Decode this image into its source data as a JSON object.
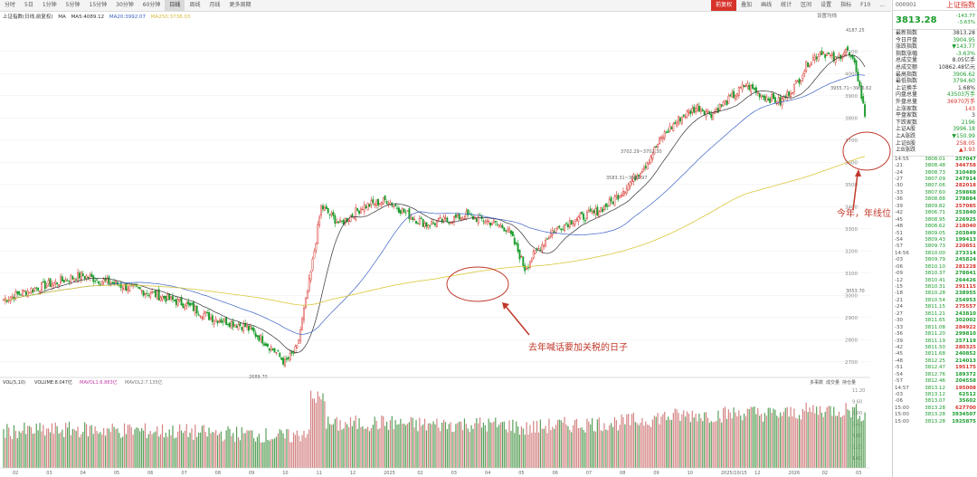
{
  "toolbar": {
    "periods": [
      "分时",
      "5日",
      "1分钟",
      "5分钟",
      "15分钟",
      "30分钟",
      "60分钟",
      "日线",
      "周线",
      "月线",
      "更多周期"
    ],
    "active_period": "日线",
    "right_buttons": [
      "前复权",
      "叠加",
      "画线",
      "统计",
      "区间",
      "设置",
      "指标",
      "F10",
      "..."
    ],
    "right_active": "前复权"
  },
  "chart_header": {
    "name": "上证指数(日线,前复权)",
    "ma_label": "MA",
    "ma5": "MA5:4089.12",
    "ma20": "MA20:3992.07",
    "ma250": "MA250:3738.03",
    "settings": "设置均线"
  },
  "right_panel": {
    "code": "000001",
    "name": "上证指数",
    "price": "3813.28",
    "change": "-143.77",
    "change_pct": "-3.63%",
    "stats": [
      {
        "label": "最新指数",
        "value": "3813.28",
        "color": "#333"
      },
      {
        "label": "今日开盘",
        "value": "3904.95",
        "color": "#1a9c2b"
      },
      {
        "label": "涨跌指数",
        "value": "▼143.77",
        "color": "#1a9c2b"
      },
      {
        "label": "指数涨幅",
        "value": "-3.63%",
        "color": "#1a9c2b"
      },
      {
        "label": "总成交量",
        "value": "8.05亿手",
        "color": "#333"
      },
      {
        "label": "总成交额",
        "value": "10862.48亿元",
        "color": "#333"
      },
      {
        "label": "最高指数",
        "value": "3906.62",
        "color": "#1a9c2b"
      },
      {
        "label": "最低指数",
        "value": "3794.60",
        "color": "#1a9c2b"
      },
      {
        "label": "上证换手",
        "value": "1.68%",
        "color": "#333"
      },
      {
        "label": "内盘总量",
        "value": "43503万手",
        "color": "#1a9c2b"
      },
      {
        "label": "外盘总量",
        "value": "36970万手",
        "color": "#d6332b"
      },
      {
        "label": "上涨家数",
        "value": "143",
        "color": "#d6332b"
      },
      {
        "label": "平盘家数",
        "value": "3",
        "color": "#333"
      },
      {
        "label": "下跌家数",
        "value": "2196",
        "color": "#1a9c2b"
      },
      {
        "label": "上证A股",
        "value": "3996.18",
        "color": "#1a9c2b"
      },
      {
        "label": "上A涨跌",
        "value": "▼150.99",
        "color": "#1a9c2b"
      },
      {
        "label": "上证B股",
        "value": "258.05",
        "color": "#d6332b"
      },
      {
        "label": "上B涨跌",
        "value": "▲3.93",
        "color": "#d6332b"
      }
    ],
    "ticks": [
      [
        "14:55",
        "3808.01",
        "257047"
      ],
      [
        "-21",
        "3808.48",
        "344758"
      ],
      [
        "-24",
        "3808.73",
        "310489"
      ],
      [
        "-27",
        "3807.09",
        "247914"
      ],
      [
        "-30",
        "3807.06",
        "282018"
      ],
      [
        "-33",
        "3807.60",
        "259868"
      ],
      [
        "-36",
        "3808.88",
        "278884"
      ],
      [
        "-39",
        "3809.82",
        "257085"
      ],
      [
        "-42",
        "3806.71",
        "253840"
      ],
      [
        "-45",
        "3808.95",
        "226925"
      ],
      [
        "-48",
        "3808.62",
        "218040"
      ],
      [
        "-51",
        "3809.05",
        "203849"
      ],
      [
        "-54",
        "3809.43",
        "199413"
      ],
      [
        "-57",
        "3809.73",
        "220851"
      ],
      [
        "14:56",
        "3810.00",
        "273314"
      ],
      [
        "-03",
        "3809.79",
        "245824"
      ],
      [
        "-06",
        "3810.10",
        "281228"
      ],
      [
        "-09",
        "3810.37",
        "278841"
      ],
      [
        "-12",
        "3810.41",
        "264426"
      ],
      [
        "-15",
        "3810.31",
        "291115"
      ],
      [
        "-18",
        "3810.28",
        "238955"
      ],
      [
        "-21",
        "3810.54",
        "254953"
      ],
      [
        "-24",
        "3811.15",
        "275557"
      ],
      [
        "-27",
        "3811.21",
        "243810"
      ],
      [
        "-30",
        "3811.65",
        "302002"
      ],
      [
        "-33",
        "3811.08",
        "284922"
      ],
      [
        "-36",
        "3811.20",
        "299810"
      ],
      [
        "-39",
        "3811.19",
        "257119"
      ],
      [
        "-42",
        "3811.50",
        "280325"
      ],
      [
        "-45",
        "3811.68",
        "240852"
      ],
      [
        "-48",
        "3812.25",
        "214013"
      ],
      [
        "-51",
        "3812.47",
        "195175"
      ],
      [
        "-54",
        "3812.76",
        "189372"
      ],
      [
        "-57",
        "3812.46",
        "204558"
      ],
      [
        "14:57",
        "3813.12",
        "195008"
      ],
      [
        "-03",
        "3813.12",
        "62512"
      ],
      [
        "-06",
        "3813.07",
        "35602"
      ],
      [
        "15:00",
        "3813.28",
        "627700"
      ],
      [
        "15:00",
        "3813.28",
        "3934507"
      ],
      [
        "15:00",
        "3813.28",
        "1925875"
      ]
    ]
  },
  "annotations": {
    "left_text": "去年喊话要加关税的日子",
    "right_text": "今年，年线位置在这"
  },
  "volume_header": {
    "label": "VOL(5,10)",
    "vol": "VOLUME:8.047亿",
    "mavol1": "MAVOL1:6.883亿",
    "mavol2": "MAVOL2:7.135亿",
    "buttons": [
      "多事数",
      "成交量",
      "持仓量"
    ]
  },
  "chart_data": {
    "type": "candlestick",
    "title": "上证指数(日线,前复权)",
    "ylim": [
      2650,
      4250
    ],
    "y_ticks": [
      2700,
      2800,
      2900,
      3000,
      3100,
      3200,
      3300,
      3400,
      3500,
      3600,
      3700,
      3800,
      3900,
      4000,
      4100
    ],
    "x_ticks": [
      "02",
      "03",
      "04",
      "05",
      "06",
      "07",
      "08",
      "09",
      "10",
      "11",
      "12",
      "2025",
      "02",
      "03",
      "04",
      "05",
      "06",
      "07",
      "08",
      "09",
      "10",
      "2025/10/15",
      "12",
      "2026",
      "02",
      "03"
    ],
    "price_labels": [
      {
        "text": "4187.25"
      },
      {
        "text": "3955.71~3906.62"
      },
      {
        "text": "3702.29~3702.30"
      },
      {
        "text": "3583.31~3586.97"
      },
      {
        "text": "3053.70"
      },
      {
        "text": "2689.70"
      }
    ],
    "key_points": {
      "low_2024": 2689.7,
      "high_2026": 4187.25,
      "last_close": 3813.28
    },
    "volume_y_ticks": [
      "11.20",
      "9.60",
      "8.00",
      "6.40",
      "4.80",
      "3.20",
      "1.60"
    ],
    "series": [
      {
        "name": "MA5",
        "value": 4089.12,
        "color": "#333333"
      },
      {
        "name": "MA20",
        "value": 3992.07,
        "color": "#3a62c4"
      },
      {
        "name": "MA250",
        "value": 3738.03,
        "color": "#d9c73a"
      }
    ]
  }
}
